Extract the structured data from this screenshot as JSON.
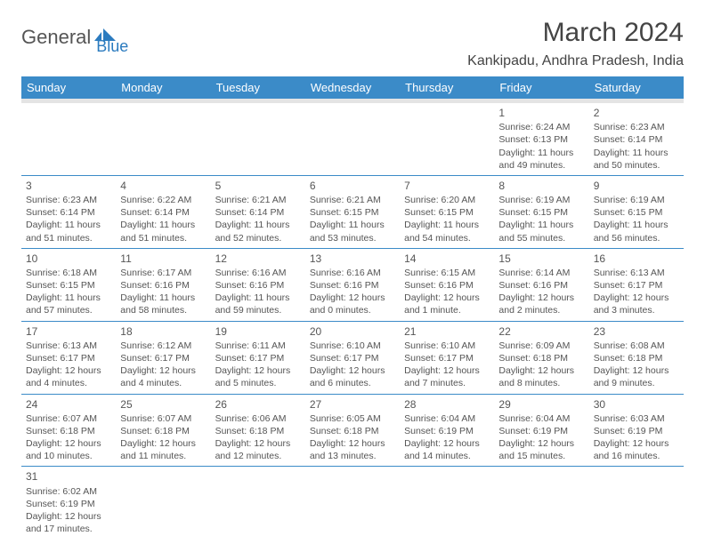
{
  "logo": {
    "general": "General",
    "blue": "Blue"
  },
  "title": "March 2024",
  "location": "Kankipadu, Andhra Pradesh, India",
  "colors": {
    "header_bg": "#3b8bc8",
    "header_text": "#ffffff",
    "sep_bg": "#e4e4e4",
    "border": "#3b8bc8",
    "text": "#555555",
    "logo_blue": "#2b7bbf"
  },
  "weekdays": [
    "Sunday",
    "Monday",
    "Tuesday",
    "Wednesday",
    "Thursday",
    "Friday",
    "Saturday"
  ],
  "weeks": [
    [
      null,
      null,
      null,
      null,
      null,
      {
        "n": "1",
        "sr": "6:24 AM",
        "ss": "6:13 PM",
        "dl": "11 hours and 49 minutes."
      },
      {
        "n": "2",
        "sr": "6:23 AM",
        "ss": "6:14 PM",
        "dl": "11 hours and 50 minutes."
      }
    ],
    [
      {
        "n": "3",
        "sr": "6:23 AM",
        "ss": "6:14 PM",
        "dl": "11 hours and 51 minutes."
      },
      {
        "n": "4",
        "sr": "6:22 AM",
        "ss": "6:14 PM",
        "dl": "11 hours and 51 minutes."
      },
      {
        "n": "5",
        "sr": "6:21 AM",
        "ss": "6:14 PM",
        "dl": "11 hours and 52 minutes."
      },
      {
        "n": "6",
        "sr": "6:21 AM",
        "ss": "6:15 PM",
        "dl": "11 hours and 53 minutes."
      },
      {
        "n": "7",
        "sr": "6:20 AM",
        "ss": "6:15 PM",
        "dl": "11 hours and 54 minutes."
      },
      {
        "n": "8",
        "sr": "6:19 AM",
        "ss": "6:15 PM",
        "dl": "11 hours and 55 minutes."
      },
      {
        "n": "9",
        "sr": "6:19 AM",
        "ss": "6:15 PM",
        "dl": "11 hours and 56 minutes."
      }
    ],
    [
      {
        "n": "10",
        "sr": "6:18 AM",
        "ss": "6:15 PM",
        "dl": "11 hours and 57 minutes."
      },
      {
        "n": "11",
        "sr": "6:17 AM",
        "ss": "6:16 PM",
        "dl": "11 hours and 58 minutes."
      },
      {
        "n": "12",
        "sr": "6:16 AM",
        "ss": "6:16 PM",
        "dl": "11 hours and 59 minutes."
      },
      {
        "n": "13",
        "sr": "6:16 AM",
        "ss": "6:16 PM",
        "dl": "12 hours and 0 minutes."
      },
      {
        "n": "14",
        "sr": "6:15 AM",
        "ss": "6:16 PM",
        "dl": "12 hours and 1 minute."
      },
      {
        "n": "15",
        "sr": "6:14 AM",
        "ss": "6:16 PM",
        "dl": "12 hours and 2 minutes."
      },
      {
        "n": "16",
        "sr": "6:13 AM",
        "ss": "6:17 PM",
        "dl": "12 hours and 3 minutes."
      }
    ],
    [
      {
        "n": "17",
        "sr": "6:13 AM",
        "ss": "6:17 PM",
        "dl": "12 hours and 4 minutes."
      },
      {
        "n": "18",
        "sr": "6:12 AM",
        "ss": "6:17 PM",
        "dl": "12 hours and 4 minutes."
      },
      {
        "n": "19",
        "sr": "6:11 AM",
        "ss": "6:17 PM",
        "dl": "12 hours and 5 minutes."
      },
      {
        "n": "20",
        "sr": "6:10 AM",
        "ss": "6:17 PM",
        "dl": "12 hours and 6 minutes."
      },
      {
        "n": "21",
        "sr": "6:10 AM",
        "ss": "6:17 PM",
        "dl": "12 hours and 7 minutes."
      },
      {
        "n": "22",
        "sr": "6:09 AM",
        "ss": "6:18 PM",
        "dl": "12 hours and 8 minutes."
      },
      {
        "n": "23",
        "sr": "6:08 AM",
        "ss": "6:18 PM",
        "dl": "12 hours and 9 minutes."
      }
    ],
    [
      {
        "n": "24",
        "sr": "6:07 AM",
        "ss": "6:18 PM",
        "dl": "12 hours and 10 minutes."
      },
      {
        "n": "25",
        "sr": "6:07 AM",
        "ss": "6:18 PM",
        "dl": "12 hours and 11 minutes."
      },
      {
        "n": "26",
        "sr": "6:06 AM",
        "ss": "6:18 PM",
        "dl": "12 hours and 12 minutes."
      },
      {
        "n": "27",
        "sr": "6:05 AM",
        "ss": "6:18 PM",
        "dl": "12 hours and 13 minutes."
      },
      {
        "n": "28",
        "sr": "6:04 AM",
        "ss": "6:19 PM",
        "dl": "12 hours and 14 minutes."
      },
      {
        "n": "29",
        "sr": "6:04 AM",
        "ss": "6:19 PM",
        "dl": "12 hours and 15 minutes."
      },
      {
        "n": "30",
        "sr": "6:03 AM",
        "ss": "6:19 PM",
        "dl": "12 hours and 16 minutes."
      }
    ],
    [
      {
        "n": "31",
        "sr": "6:02 AM",
        "ss": "6:19 PM",
        "dl": "12 hours and 17 minutes."
      },
      null,
      null,
      null,
      null,
      null,
      null
    ]
  ],
  "labels": {
    "sunrise": "Sunrise:",
    "sunset": "Sunset:",
    "daylight": "Daylight:"
  }
}
